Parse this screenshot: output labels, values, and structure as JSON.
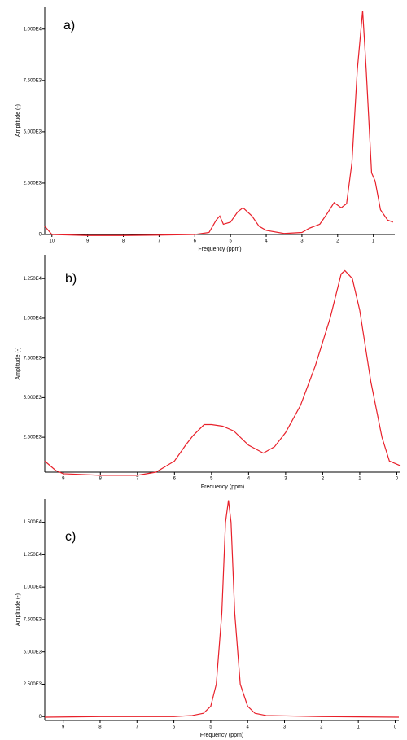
{
  "chart_data": [
    {
      "type": "line",
      "annotation": "a)",
      "xlabel": "Frequency (ppm)",
      "ylabel": "Amplitude (-)",
      "color": "#e8202a",
      "xlim": [
        10.2,
        0.4
      ],
      "xticks": [
        10,
        9,
        8,
        7,
        6,
        5,
        4,
        3,
        2,
        1
      ],
      "ylim": [
        0,
        11100
      ],
      "yticks": [
        0,
        {
          "value": 2500,
          "label": "2.500E3"
        },
        {
          "value": 5000,
          "label": "5.000E3"
        },
        {
          "value": 7500,
          "label": "7.500E3"
        },
        {
          "value": 10000,
          "label": "1.000E4"
        }
      ],
      "x": [
        10.2,
        10.0,
        9,
        8,
        7,
        6,
        5.6,
        5.4,
        5.3,
        5.2,
        5.0,
        4.8,
        4.65,
        4.4,
        4.2,
        4.0,
        3.5,
        3.0,
        2.8,
        2.5,
        2.3,
        2.1,
        1.9,
        1.75,
        1.6,
        1.45,
        1.3,
        1.2,
        1.05,
        0.95,
        0.8,
        0.6,
        0.45
      ],
      "values": [
        400,
        0,
        -50,
        -50,
        -30,
        0,
        100,
        700,
        900,
        500,
        600,
        1100,
        1300,
        900,
        400,
        200,
        50,
        100,
        300,
        500,
        1000,
        1550,
        1300,
        1500,
        3500,
        8000,
        10900,
        8000,
        3000,
        2600,
        1200,
        700,
        600
      ]
    },
    {
      "type": "line",
      "annotation": "b)",
      "xlabel": "Frequency (ppm)",
      "ylabel": "Amplitude (-)",
      "color": "#e8202a",
      "xlim": [
        9.5,
        -0.1
      ],
      "xticks": [
        9,
        8,
        7,
        6,
        5,
        4,
        3,
        2,
        1,
        0
      ],
      "ylim": [
        300,
        14000
      ],
      "yticks": [
        {
          "value": 2500,
          "label": "2.500E3"
        },
        {
          "value": 5000,
          "label": "5.000E3"
        },
        {
          "value": 7500,
          "label": "7.500E3"
        },
        {
          "value": 10000,
          "label": "1.000E4"
        },
        {
          "value": 12500,
          "label": "1.250E4"
        }
      ],
      "x": [
        9.5,
        9.2,
        9,
        8,
        7,
        6.5,
        6,
        5.7,
        5.5,
        5.2,
        5.0,
        4.7,
        4.4,
        4.0,
        3.6,
        3.3,
        3.0,
        2.6,
        2.2,
        1.8,
        1.5,
        1.4,
        1.2,
        1.0,
        0.7,
        0.4,
        0.2,
        -0.1
      ],
      "values": [
        1000,
        400,
        200,
        100,
        100,
        300,
        1000,
        2000,
        2600,
        3300,
        3300,
        3200,
        2900,
        2000,
        1500,
        1900,
        2800,
        4500,
        7000,
        10000,
        12800,
        13000,
        12500,
        10500,
        6000,
        2500,
        1000,
        700
      ]
    },
    {
      "type": "line",
      "annotation": "c)",
      "xlabel": "Frequency (ppm)",
      "ylabel": "Amplitude (-)",
      "color": "#e8202a",
      "xlim": [
        9.5,
        -0.1
      ],
      "xticks": [
        9,
        8,
        7,
        6,
        5,
        4,
        3,
        2,
        1,
        0
      ],
      "ylim": [
        -300,
        16800
      ],
      "yticks": [
        0,
        {
          "value": 2500,
          "label": "2.500E3"
        },
        {
          "value": 5000,
          "label": "5.000E3"
        },
        {
          "value": 7500,
          "label": "7.500E3"
        },
        {
          "value": 10000,
          "label": "1.000E4"
        },
        {
          "value": 12500,
          "label": "1.250E4"
        },
        {
          "value": 15000,
          "label": "1.500E4"
        }
      ],
      "x": [
        9.5,
        8,
        6,
        5.5,
        5.2,
        5.0,
        4.85,
        4.7,
        4.6,
        4.52,
        4.45,
        4.35,
        4.2,
        4.0,
        3.8,
        3.5,
        2,
        -0.1
      ],
      "values": [
        -50,
        0,
        0,
        80,
        250,
        800,
        2500,
        8000,
        15000,
        16700,
        15000,
        8000,
        2500,
        800,
        250,
        80,
        0,
        -50
      ]
    }
  ]
}
